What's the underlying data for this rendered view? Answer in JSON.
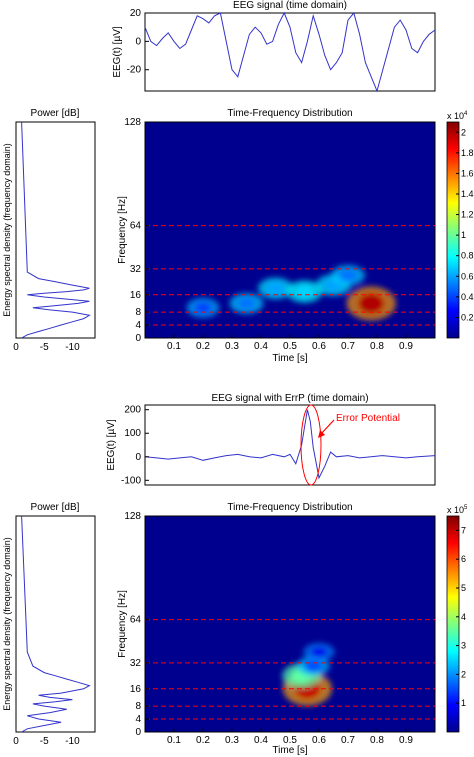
{
  "chart_data": [
    {
      "type": "line",
      "title": "EEG signal (time domain)",
      "ylabel": "EEG(t) [µV]",
      "xlabel": "",
      "xlim": [
        0,
        1
      ],
      "ylim": [
        -35,
        20
      ],
      "yticks": [
        -20,
        0,
        20
      ],
      "line_color": "#3333cc",
      "series": [
        {
          "x": [
            0.0,
            0.02,
            0.04,
            0.06,
            0.08,
            0.1,
            0.12,
            0.14,
            0.16,
            0.18,
            0.2,
            0.22,
            0.24,
            0.26,
            0.28,
            0.3,
            0.32,
            0.34,
            0.36,
            0.38,
            0.4,
            0.42,
            0.44,
            0.46,
            0.48,
            0.5,
            0.52,
            0.54,
            0.56,
            0.58,
            0.6,
            0.62,
            0.64,
            0.66,
            0.68,
            0.7,
            0.72,
            0.74,
            0.76,
            0.78,
            0.8,
            0.82,
            0.84,
            0.86,
            0.88,
            0.9,
            0.92,
            0.94,
            0.96,
            0.98,
            1.0
          ],
          "values": [
            10,
            0,
            -3,
            2,
            6,
            0,
            -5,
            -2,
            8,
            18,
            16,
            13,
            18,
            20,
            0,
            -20,
            -25,
            -10,
            5,
            10,
            6,
            -2,
            0,
            12,
            20,
            10,
            -8,
            -15,
            0,
            18,
            5,
            -10,
            -20,
            -15,
            -8,
            15,
            20,
            5,
            -15,
            -25,
            -35,
            -20,
            -5,
            10,
            15,
            8,
            -5,
            -8,
            0,
            5,
            8
          ]
        }
      ]
    },
    {
      "type": "line",
      "title": "Power [dB]",
      "ylabel": "Energy spectral density (frequency domain)",
      "xlabel": "",
      "xticks": [
        0,
        -5,
        -10
      ],
      "line_color": "#3333cc",
      "series": [
        {
          "x": [
            -1,
            -2,
            -4,
            -6,
            -8,
            -10,
            -12,
            -13,
            -10,
            -6,
            -3,
            -7,
            -11,
            -13,
            -9,
            -5,
            -2,
            -5,
            -9,
            -12,
            -13,
            -10,
            -7,
            -4,
            -2,
            -1
          ],
          "values": [
            0,
            1,
            2,
            3,
            4,
            5,
            6,
            7,
            8,
            9,
            10,
            11,
            12,
            13,
            14,
            15,
            16,
            17,
            18,
            19,
            20,
            22,
            24,
            26,
            30,
            128
          ]
        }
      ]
    },
    {
      "type": "heatmap",
      "title": "Time-Frequency Distribution",
      "xlabel": "Time [s]",
      "ylabel": "Frequency [Hz]",
      "xticks": [
        0.1,
        0.2,
        0.3,
        0.4,
        0.5,
        0.6,
        0.7,
        0.8,
        0.9
      ],
      "yticks": [
        0,
        4,
        8,
        16,
        32,
        64,
        128
      ],
      "dashed_lines_hz": [
        4,
        8,
        16,
        32,
        64
      ],
      "dashed_color": "#ff0000",
      "colorbar": {
        "multiplier_base": "x 10",
        "multiplier_exp": "4",
        "ticks": [
          0.2,
          0.4,
          0.6,
          0.8,
          1,
          1.2,
          1.4,
          1.6,
          1.8,
          2
        ],
        "max": 2.1
      },
      "blobs": [
        {
          "t": 0.78,
          "f": 12,
          "value": 2.0
        },
        {
          "t": 0.55,
          "f": 18,
          "value": 0.7
        },
        {
          "t": 0.45,
          "f": 20,
          "value": 0.6
        },
        {
          "t": 0.35,
          "f": 12,
          "value": 0.5
        },
        {
          "t": 0.2,
          "f": 10,
          "value": 0.4
        },
        {
          "t": 0.65,
          "f": 22,
          "value": 0.6
        },
        {
          "t": 0.7,
          "f": 28,
          "value": 0.5
        }
      ]
    },
    {
      "type": "line",
      "title": "EEG signal with ErrP (time domain)",
      "ylabel": "EEG(t) [µV]",
      "xlabel": "",
      "xlim": [
        0,
        1
      ],
      "ylim": [
        -120,
        220
      ],
      "yticks": [
        -100,
        0,
        100,
        200
      ],
      "line_color": "#3333cc",
      "annotation": {
        "text": "Error Potential",
        "t": 0.57,
        "value": 150,
        "color": "#ff0000"
      },
      "series": [
        {
          "x": [
            0.0,
            0.04,
            0.08,
            0.12,
            0.16,
            0.2,
            0.24,
            0.28,
            0.32,
            0.36,
            0.4,
            0.44,
            0.48,
            0.5,
            0.52,
            0.54,
            0.56,
            0.57,
            0.58,
            0.6,
            0.62,
            0.64,
            0.66,
            0.7,
            0.74,
            0.78,
            0.82,
            0.86,
            0.9,
            0.94,
            1.0
          ],
          "values": [
            0,
            -5,
            -10,
            -5,
            0,
            -15,
            -5,
            5,
            10,
            0,
            -5,
            10,
            0,
            10,
            -30,
            50,
            200,
            150,
            40,
            -90,
            -40,
            20,
            0,
            5,
            -5,
            0,
            5,
            0,
            -5,
            0,
            5
          ]
        }
      ]
    },
    {
      "type": "line",
      "title": "Power [dB]",
      "ylabel": "Energy spectral density (frequency domain)",
      "xlabel": "",
      "xticks": [
        0,
        -5,
        -10
      ],
      "line_color": "#3333cc",
      "series": [
        {
          "x": [
            -1,
            -2,
            -5,
            -8,
            -4,
            -2,
            -6,
            -9,
            -5,
            -3,
            -7,
            -10,
            -6,
            -4,
            -8,
            -12,
            -13,
            -11,
            -9,
            -7,
            -5,
            -3,
            -2,
            -1
          ],
          "values": [
            0,
            1,
            2,
            3,
            4,
            5,
            6,
            7,
            8,
            9,
            10,
            11,
            12,
            13,
            14,
            16,
            18,
            20,
            22,
            24,
            26,
            30,
            40,
            128
          ]
        }
      ]
    },
    {
      "type": "heatmap",
      "title": "Time-Frequency Distribution",
      "xlabel": "Time [s]",
      "ylabel": "Frequency [Hz]",
      "xticks": [
        0.1,
        0.2,
        0.3,
        0.4,
        0.5,
        0.6,
        0.7,
        0.8,
        0.9
      ],
      "yticks": [
        0,
        4,
        8,
        16,
        32,
        64,
        128
      ],
      "dashed_lines_hz": [
        4,
        8,
        16,
        32,
        64
      ],
      "dashed_color": "#ff0000",
      "colorbar": {
        "multiplier_base": "x 10",
        "multiplier_exp": "5",
        "ticks": [
          1,
          2,
          3,
          4,
          5,
          6,
          7
        ],
        "max": 7.5
      },
      "blobs": [
        {
          "t": 0.56,
          "f": 16,
          "value": 7.0
        },
        {
          "t": 0.54,
          "f": 24,
          "value": 3.5
        },
        {
          "t": 0.58,
          "f": 30,
          "value": 1.5
        },
        {
          "t": 0.6,
          "f": 40,
          "value": 0.8
        }
      ]
    }
  ]
}
